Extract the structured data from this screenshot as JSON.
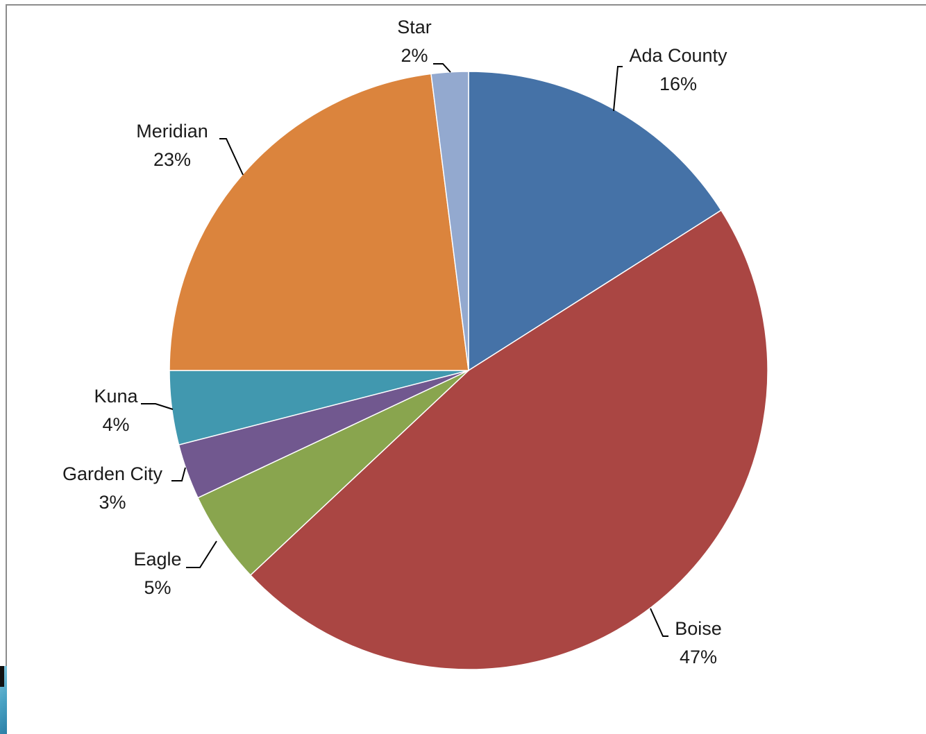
{
  "chart_data": {
    "type": "pie",
    "start_angle_deg": 0,
    "direction": "clockwise",
    "slices": [
      {
        "label": "Ada County",
        "value": 16,
        "pct_label": "16%",
        "color": "#4572A7"
      },
      {
        "label": "Boise",
        "value": 47,
        "pct_label": "47%",
        "color": "#AA4643"
      },
      {
        "label": "Eagle",
        "value": 5,
        "pct_label": "5%",
        "color": "#89A54E"
      },
      {
        "label": "Garden City",
        "value": 3,
        "pct_label": "3%",
        "color": "#71588F"
      },
      {
        "label": "Kuna",
        "value": 4,
        "pct_label": "4%",
        "color": "#4198AF"
      },
      {
        "label": "Meridian",
        "value": 23,
        "pct_label": "23%",
        "color": "#DB843D"
      },
      {
        "label": "Star",
        "value": 2,
        "pct_label": "2%",
        "color": "#93A9CF"
      }
    ],
    "legend": "none",
    "data_labels": "outside-with-leader-lines"
  }
}
